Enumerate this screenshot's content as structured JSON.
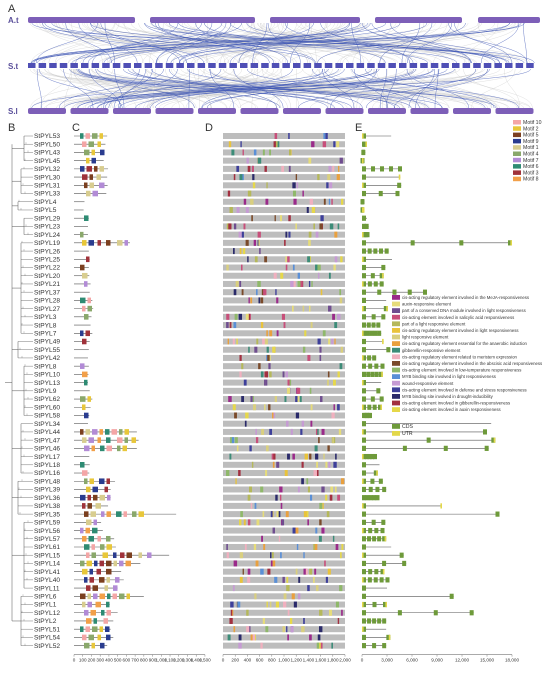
{
  "panels": {
    "a": "A",
    "b": "B",
    "c": "C",
    "d": "D",
    "e": "E"
  },
  "synteny": {
    "rows": [
      {
        "label": "A.t",
        "color": "#7d5fb8"
      },
      {
        "label": "S.t",
        "color": "#4f4fb5"
      },
      {
        "label": "S.l",
        "color": "#7d5fb8"
      }
    ]
  },
  "genes": [
    "StPYL53",
    "StPYL50",
    "StPYL43",
    "StPYL45",
    "StPYL32",
    "StPYL30",
    "StPYL31",
    "StPYL33",
    "StPYL4",
    "StPYL5",
    "StPYL29",
    "StPYL23",
    "StPYL24",
    "StPYL19",
    "StPYL26",
    "StPYL25",
    "StPYL22",
    "StPYL20",
    "StPYL21",
    "StPYL37",
    "StPYL28",
    "StPYL27",
    "StPYL3",
    "StPYL8",
    "StPYL7",
    "StPYL49",
    "StPYL55",
    "StPYL42",
    "StPYL8",
    "StPYL10",
    "StPYL13",
    "StPYL9",
    "StPYL62",
    "StPYL60",
    "StPYL58",
    "StPYL34",
    "StPYL44",
    "StPYL47",
    "StPYL46",
    "StPYL17",
    "StPYL18",
    "StPYL16",
    "StPYL48",
    "StPYL39",
    "StPYL36",
    "StPYL38",
    "StPYL35",
    "StPYL59",
    "StPYL56",
    "StPYL57",
    "StPYL61",
    "StPYL15",
    "StPYL14",
    "StPYL41",
    "StPYL40",
    "StPYL11",
    "StPYL6",
    "StPYL1",
    "StPYL12",
    "StPYL2",
    "StPYL51",
    "StPYL54",
    "StPYL52"
  ],
  "axes": {
    "c_ticks": [
      "0",
      "100",
      "200",
      "300",
      "400",
      "500",
      "600",
      "700",
      "800",
      "900",
      "1,000",
      "1,100",
      "1,200",
      "1,300",
      "1,400",
      "1,500"
    ],
    "d_ticks": [
      "0",
      "200",
      "400",
      "600",
      "800",
      "1,000",
      "1,200",
      "1,400",
      "1,600",
      "1,800",
      "2,000"
    ],
    "e_ticks": [
      "0",
      "3,000",
      "6,000",
      "9,000",
      "12,000",
      "15,000",
      "18,000"
    ]
  },
  "motif_legend": [
    {
      "label": "Motif 10",
      "color": "#f4a6a6"
    },
    {
      "label": "Motif 2",
      "color": "#e8c73a"
    },
    {
      "label": "Motif 5",
      "color": "#7b3f1f"
    },
    {
      "label": "Motif 9",
      "color": "#2a3c8f"
    },
    {
      "label": "Motif 1",
      "color": "#d8cd8f"
    },
    {
      "label": "Motif 4",
      "color": "#8aa86b"
    },
    {
      "label": "Motif 7",
      "color": "#b28bd6"
    },
    {
      "label": "Motif 6",
      "color": "#2e8b73"
    },
    {
      "label": "Motif 3",
      "color": "#a0323a"
    },
    {
      "label": "Motif 8",
      "color": "#f2a049"
    }
  ],
  "cis_legend": [
    {
      "label": "cis-acting regulatory element involved in the MeJA-responsiveness",
      "color": "#9a2a8a"
    },
    {
      "label": "auxin-responsive element",
      "color": "#e6dc7a"
    },
    {
      "label": "part of a conserved DNA module involved in light responsiveness",
      "color": "#6f4d8f"
    },
    {
      "label": "cis-acting element involved in salicylic acid responsiveness",
      "color": "#c74f7a"
    },
    {
      "label": "part of a light responsive element",
      "color": "#b5b85a"
    },
    {
      "label": "cis-acting regulatory element involved in light responsiveness",
      "color": "#e9c33b"
    },
    {
      "label": "light responsive element",
      "color": "#d9cf7f"
    },
    {
      "label": "cis-acting regulatory element essential for the anaerobic induction",
      "color": "#e9a03e"
    },
    {
      "label": "gibberellin-responsive element",
      "color": "#3c8c78"
    },
    {
      "label": "cis-acting regulatory element related to meristem expression",
      "color": "#f1b0bf"
    },
    {
      "label": "cis-acting regulatory element involved in the abscisic acid responsiveness",
      "color": "#7a4a2a"
    },
    {
      "label": "cis-acting element involved in low-temperature responsiveness",
      "color": "#8fb86a"
    },
    {
      "label": "MYB binding site involved in light responsiveness",
      "color": "#5a8fd6"
    },
    {
      "label": "wound-responsive element",
      "color": "#c69bd4"
    },
    {
      "label": "cis-acting element involved in defense and stress responsiveness",
      "color": "#3d3f9a"
    },
    {
      "label": "MYB binding site involved in drought-inducibility",
      "color": "#2a2a6a"
    },
    {
      "label": "cis-acting element involved in gibberellin-responsiveness",
      "color": "#a23040"
    },
    {
      "label": "cis-acting element involved in auxin responsiveness",
      "color": "#e6d84a"
    }
  ],
  "structure_legend": [
    {
      "label": "CDS",
      "color": "#6e9a3a"
    },
    {
      "label": "UTR",
      "color": "#e3d84a"
    }
  ]
}
